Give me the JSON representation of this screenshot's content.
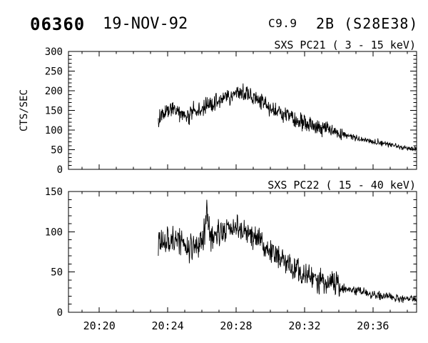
{
  "header": {
    "event_number": "06360",
    "date": "19-NOV-92",
    "xray_class": "C9.9",
    "optical_class_location": "2B (S28E38)"
  },
  "colors": {
    "foreground": "#000000",
    "background": "#ffffff"
  },
  "chart_data": [
    {
      "type": "line",
      "title": "SXS PC21  (  3 - 15 keV)",
      "detector": "SXS PC21",
      "energy_range_kev": [
        3,
        15
      ],
      "ylabel": "CTS/SEC",
      "xlabel": "",
      "grid": false,
      "line_color": "#000000",
      "ylim": [
        0,
        300
      ],
      "y_major_tick_step": 50,
      "y_minor_tick_step": 10,
      "y_tick_labels": [
        "0",
        "50",
        "100",
        "150",
        "200",
        "250",
        "300"
      ],
      "xlim_minutes_after_2000UT": [
        18.2,
        38.55
      ],
      "x_major_ticks_minutes": [
        20,
        24,
        28,
        32,
        36
      ],
      "x_tick_labels": [
        "20:20",
        "20:24",
        "20:28",
        "20:32",
        "20:36"
      ],
      "x_minor_tick_step_minutes": 1,
      "show_x_tick_labels": false,
      "show_y_axis_label": true,
      "data_start_minutes": 23.45,
      "data_end_minutes": 38.55,
      "trend_cts_per_sec": [
        [
          23.45,
          118
        ],
        [
          23.6,
          138
        ],
        [
          23.9,
          148
        ],
        [
          24.2,
          153
        ],
        [
          24.5,
          150
        ],
        [
          24.8,
          142
        ],
        [
          25.1,
          133
        ],
        [
          25.4,
          140
        ],
        [
          25.7,
          148
        ],
        [
          26.0,
          155
        ],
        [
          26.4,
          163
        ],
        [
          26.7,
          168
        ],
        [
          27.0,
          175
        ],
        [
          27.4,
          185
        ],
        [
          27.8,
          194
        ],
        [
          28.1,
          198
        ],
        [
          28.4,
          194
        ],
        [
          28.8,
          188
        ],
        [
          29.2,
          180
        ],
        [
          29.6,
          170
        ],
        [
          30.0,
          157
        ],
        [
          30.5,
          146
        ],
        [
          31.0,
          136
        ],
        [
          31.5,
          127
        ],
        [
          32.0,
          118
        ],
        [
          32.5,
          110
        ],
        [
          33.0,
          103
        ],
        [
          33.5,
          97
        ],
        [
          34.0,
          92
        ],
        [
          34.5,
          86
        ],
        [
          35.0,
          80
        ],
        [
          35.5,
          75
        ],
        [
          36.0,
          70
        ],
        [
          36.5,
          66
        ],
        [
          37.0,
          62
        ],
        [
          37.5,
          58
        ],
        [
          38.0,
          55
        ],
        [
          38.55,
          52
        ]
      ],
      "noise_amplitude_cts": [
        [
          23.45,
          14
        ],
        [
          33.5,
          13
        ],
        [
          34.0,
          12
        ],
        [
          34.4,
          5
        ],
        [
          38.55,
          4.5
        ]
      ]
    },
    {
      "type": "line",
      "title": "SXS PC22  ( 15 - 40 keV)",
      "detector": "SXS PC22",
      "energy_range_kev": [
        15,
        40
      ],
      "ylabel": "",
      "xlabel": "",
      "grid": false,
      "line_color": "#000000",
      "ylim": [
        0,
        150
      ],
      "y_major_tick_step": 50,
      "y_minor_tick_step": 10,
      "y_tick_labels": [
        "0",
        "50",
        "100",
        "150"
      ],
      "xlim_minutes_after_2000UT": [
        18.2,
        38.55
      ],
      "x_major_ticks_minutes": [
        20,
        24,
        28,
        32,
        36
      ],
      "x_tick_labels": [
        "20:20",
        "20:24",
        "20:28",
        "20:32",
        "20:36"
      ],
      "x_minor_tick_step_minutes": 1,
      "show_x_tick_labels": true,
      "show_y_axis_label": false,
      "data_start_minutes": 23.45,
      "data_end_minutes": 38.55,
      "trend_cts_per_sec": [
        [
          23.45,
          85
        ],
        [
          23.7,
          88
        ],
        [
          24.0,
          90
        ],
        [
          24.3,
          92
        ],
        [
          24.6,
          90
        ],
        [
          24.9,
          86
        ],
        [
          25.2,
          81
        ],
        [
          25.5,
          79
        ],
        [
          25.8,
          85
        ],
        [
          26.05,
          90
        ],
        [
          26.2,
          108
        ],
        [
          26.28,
          123
        ],
        [
          26.38,
          105
        ],
        [
          26.5,
          93
        ],
        [
          26.8,
          96
        ],
        [
          27.1,
          99
        ],
        [
          27.4,
          102
        ],
        [
          27.7,
          104
        ],
        [
          28.0,
          105
        ],
        [
          28.3,
          103
        ],
        [
          28.6,
          99
        ],
        [
          29.0,
          94
        ],
        [
          29.4,
          88
        ],
        [
          29.8,
          81
        ],
        [
          30.2,
          74
        ],
        [
          30.6,
          67
        ],
        [
          31.0,
          60
        ],
        [
          31.4,
          54
        ],
        [
          31.8,
          49
        ],
        [
          32.2,
          45
        ],
        [
          32.6,
          42
        ],
        [
          33.0,
          40
        ],
        [
          33.5,
          38
        ],
        [
          34.0,
          33
        ],
        [
          34.5,
          29
        ],
        [
          35.0,
          27
        ],
        [
          35.5,
          24
        ],
        [
          36.0,
          22
        ],
        [
          36.5,
          20
        ],
        [
          37.0,
          19
        ],
        [
          37.5,
          18
        ],
        [
          38.0,
          17
        ],
        [
          38.55,
          16
        ]
      ],
      "noise_amplitude_cts": [
        [
          23.45,
          11
        ],
        [
          33.9,
          10
        ],
        [
          34.4,
          4
        ],
        [
          38.55,
          3
        ]
      ]
    }
  ]
}
